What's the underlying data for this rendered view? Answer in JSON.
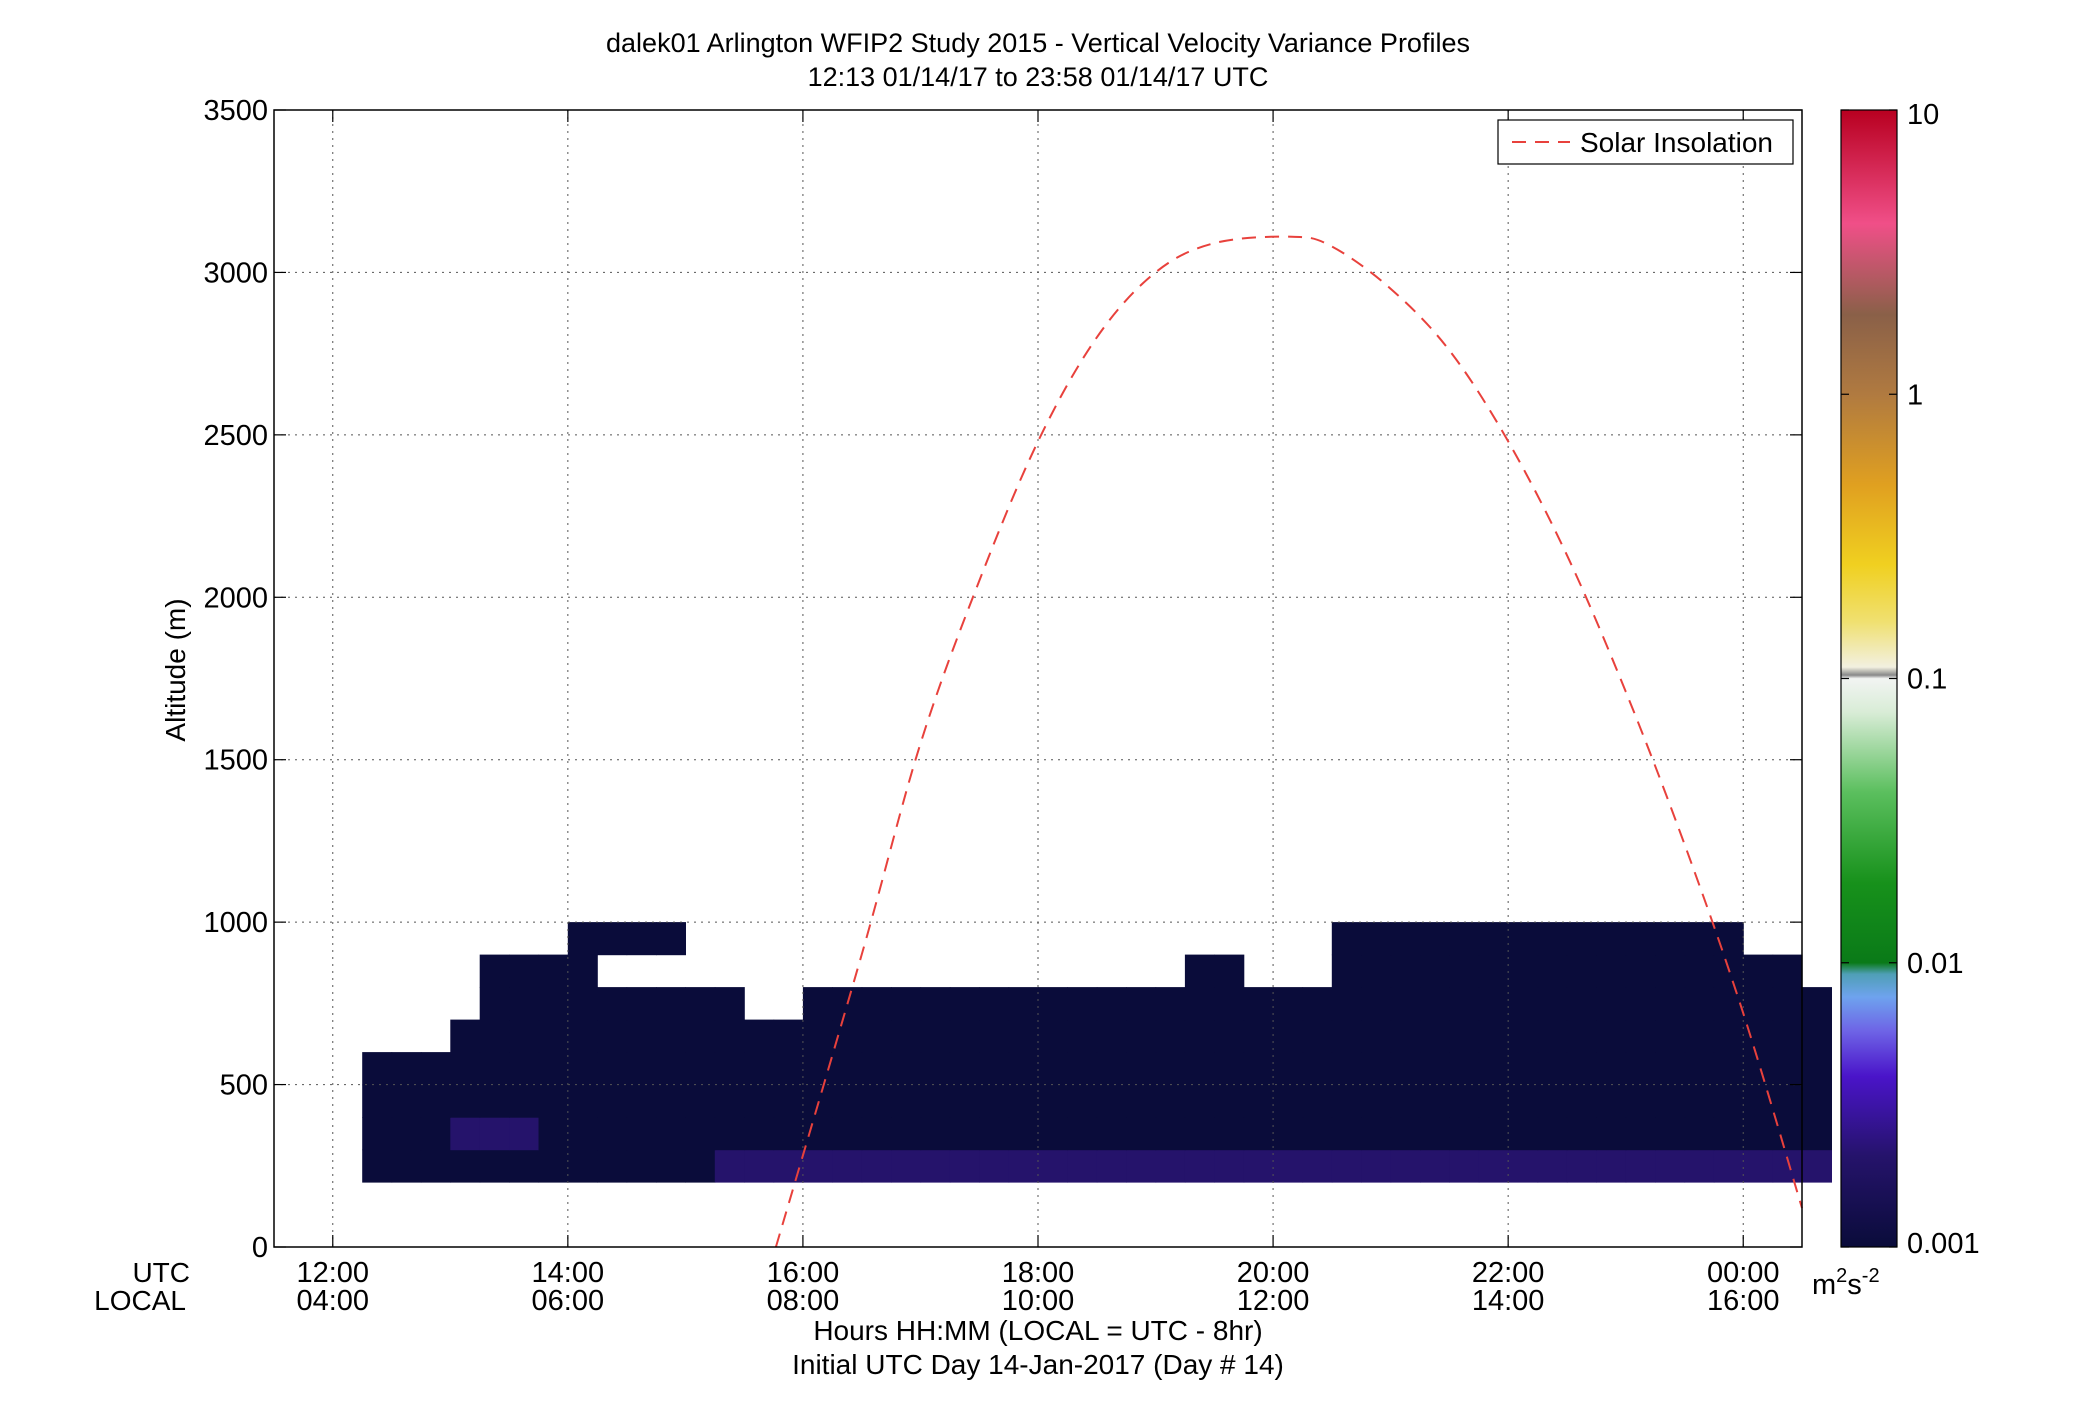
{
  "figure": {
    "title_line1": "dalek01 Arlington WFIP2 Study 2015 - Vertical Velocity Variance Profiles",
    "title_line2": "12:13 01/14/17 to 23:58 01/14/17  UTC",
    "row_label_utc": "UTC",
    "row_label_local": "LOCAL",
    "xlabel_line1": "Hours HH:MM  (LOCAL = UTC - 8hr)",
    "xlabel_line2": "Initial UTC Day 14-Jan-2017 (Day # 14)",
    "ylabel": "Altitude (m)"
  },
  "colorbar": {
    "unit_base": "m",
    "unit_exp1": "2",
    "unit_mid": "s",
    "unit_exp2": "-2",
    "tick_labels": [
      "0.001",
      "0.01",
      "0.1",
      "1",
      "10"
    ],
    "tick_values": [
      0.001,
      0.01,
      0.1,
      1,
      10
    ],
    "scale": "log",
    "range": [
      0.001,
      10
    ],
    "colors": {
      "navy": "#0a0c3a",
      "indigo": "#25136b",
      "violet": "#4a14c9",
      "purple": "#5b36d8",
      "periwinkle": "#6e64e6",
      "lightblue": "#6ea3ee",
      "teal": "#4f9fb6",
      "darkgreen": "#0a7a18",
      "green": "#17911b",
      "medgreen": "#35a63a",
      "lightgreen": "#5bbf5e",
      "mint": "#bfe0bc",
      "white": "#f2f4f2",
      "yellow": "#f0d020",
      "orange": "#e0a020",
      "brown": "#8a6048",
      "pink": "#f04f88",
      "red": "#b80020"
    }
  },
  "chart_data": {
    "type": "heatmap",
    "title": "dalek01 Arlington WFIP2 Study 2015 - Vertical Velocity Variance Profiles",
    "subtitle": "12:13 01/14/17 to 23:58 01/14/17  UTC",
    "xlabel": "Hours HH:MM  (LOCAL = UTC - 8hr)",
    "ylabel": "Altitude (m)",
    "xlim_utc_hours": [
      11.5,
      24.5
    ],
    "ylim": [
      0,
      3500
    ],
    "x_ticks_utc_hours": [
      12,
      14,
      16,
      18,
      20,
      22,
      24
    ],
    "x_tick_labels_utc": [
      "12:00",
      "14:00",
      "16:00",
      "18:00",
      "20:00",
      "22:00",
      "00:00"
    ],
    "x_tick_labels_local": [
      "04:00",
      "06:00",
      "08:00",
      "10:00",
      "12:00",
      "14:00",
      "16:00"
    ],
    "y_ticks": [
      0,
      500,
      1000,
      1500,
      2000,
      2500,
      3000,
      3500
    ],
    "y_tick_labels": [
      "0",
      "500",
      "1000",
      "1500",
      "2000",
      "2500",
      "3000",
      "3500"
    ],
    "grid": true,
    "colorbar_scale": "log",
    "colorbar_range": [
      0.001,
      10
    ],
    "x_start_utc_hours": 12.25,
    "x_bin_hours": 0.25,
    "y_start_m": 200,
    "y_bin_m": 100,
    "colorscale_keys": [
      "navy",
      "indigo",
      "violet",
      "purple",
      "periwinkle",
      "lightblue",
      "teal",
      "darkgreen",
      "green",
      "medgreen",
      "lightgreen",
      "mint"
    ],
    "cells": [
      "NNNNNNNNNNNNIIIIIIIIIIIIIIIIIIIIIIIIIIIIIIIIIIIIII",
      "NNNIIINNNNNNNNNNNNNNNNNNNNNNNNNNNNNNNNNNNNNNNNNNNN",
      "NNNNNNNNNNNNNNNNNNNNNNNNNNNNNNNNNNNNNNNNNNNNNNNNNN",
      "NNNNNNNNNNNNNNNNNNNNNNNNNNNNNNNNNNNNNNNNNNNNNNNNNN",
      "...NNNNNNNNNNNNNNNNNNNNNNNNNNNNNNNNNNNNNNNNNNNNNNN",
      "....NNNNNNNNN..NNNNNNNNNNNNNNNNNNNNNNNNNNNNNNNNNNN",
      "....NNNN....................NN...NNNNNNNNNNNNNNNN.",
      ".......NNNN......................NNNNNNNNNNNNNN...",
      "..................................................",
      ".................................................."
    ],
    "series": [
      {
        "name": "Solar Insolation",
        "type": "line",
        "style": "dashed",
        "color": "#e8413c",
        "x_utc_hours": [
          15.77,
          16.5,
          17.0,
          17.5,
          18.0,
          18.5,
          19.0,
          19.5,
          20.16,
          20.5,
          21.0,
          21.5,
          22.0,
          22.5,
          23.0,
          23.5,
          24.0,
          24.5
        ],
        "y": [
          0,
          900,
          1550,
          2050,
          2480,
          2800,
          3000,
          3090,
          3110,
          3080,
          2950,
          2760,
          2480,
          2130,
          1710,
          1240,
          720,
          120
        ]
      }
    ],
    "legend": {
      "entries": [
        "Solar Insolation"
      ],
      "position": "top-right"
    }
  }
}
